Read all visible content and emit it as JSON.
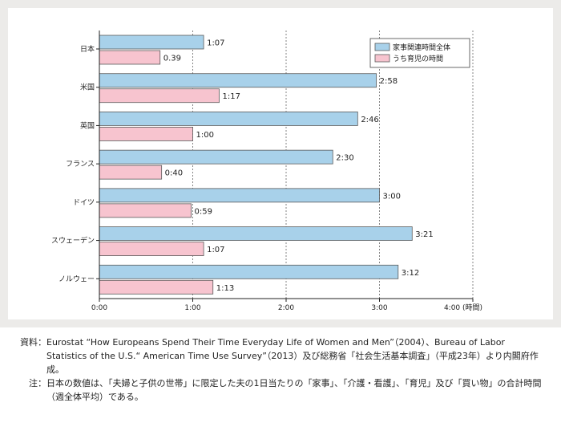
{
  "chart_data": {
    "type": "bar",
    "orientation": "horizontal",
    "categories": [
      "日本",
      "米国",
      "英国",
      "フランス",
      "ドイツ",
      "スウェーデン",
      "ノルウェー"
    ],
    "series": [
      {
        "name": "家事関連時間全体",
        "color": "#a8d1ea",
        "values": [
          67,
          178,
          166,
          150,
          180,
          201,
          192
        ],
        "labels": [
          "1:07",
          "2:58",
          "2:46",
          "2:30",
          "3:00",
          "3:21",
          "3:12"
        ]
      },
      {
        "name": "うち育児の時間",
        "color": "#f7c4cf",
        "values": [
          39,
          77,
          60,
          40,
          59,
          67,
          73
        ],
        "labels": [
          "0.39",
          "1:17",
          "1:00",
          "0:40",
          "0:59",
          "1:07",
          "1:13"
        ]
      }
    ],
    "xlim": [
      0,
      240
    ],
    "xticks": [
      0,
      60,
      120,
      180,
      240
    ],
    "xtick_labels": [
      "0:00",
      "1:00",
      "2:00",
      "3:00",
      "4:00 (時間)"
    ],
    "grid": true,
    "legend_position": "top-right"
  },
  "notes": [
    {
      "key": "資料：",
      "text": "Eurostat “How Europeans Spend Their Time Everyday Life of Women and Men”（2004）、Bureau of Labor Statistics of the U.S.“ American Time Use Survey”（2013）及び総務省「社会生活基本調査」（平成23年）より内閣府作成。"
    },
    {
      "key": "注：",
      "text": "日本の数値は、「夫婦と子供の世帯」に限定した夫の1日当たりの「家事」、「介護・看護」、「育児」及び「買い物」の合計時間（週全体平均）である。"
    }
  ]
}
